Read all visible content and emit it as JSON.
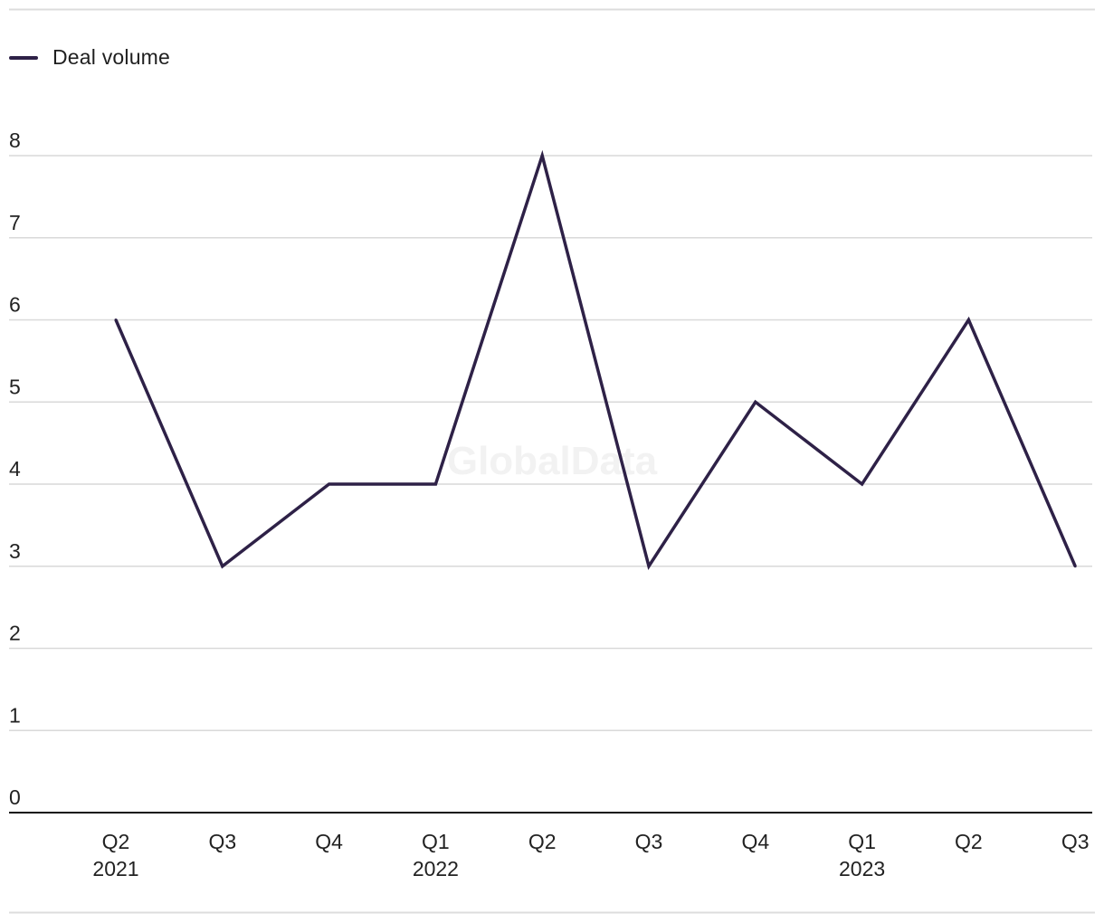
{
  "colors": {
    "series": "#2e2147",
    "grid": "#d9d9d9",
    "axis": "#111111",
    "frame": "#dcdcdc",
    "text": "#222222",
    "watermark": "#f2f2f2"
  },
  "watermark": "GlobalData",
  "chart_data": {
    "type": "line",
    "title": "",
    "xlabel": "",
    "ylabel": "",
    "ylim": [
      0,
      8
    ],
    "y_ticks": [
      0,
      1,
      2,
      3,
      4,
      5,
      6,
      7,
      8
    ],
    "grid": true,
    "legend_position": "top-left",
    "categories": [
      {
        "label": "Q2",
        "year": "2021"
      },
      {
        "label": "Q3",
        "year": ""
      },
      {
        "label": "Q4",
        "year": ""
      },
      {
        "label": "Q1",
        "year": "2022"
      },
      {
        "label": "Q2",
        "year": ""
      },
      {
        "label": "Q3",
        "year": ""
      },
      {
        "label": "Q4",
        "year": ""
      },
      {
        "label": "Q1",
        "year": "2023"
      },
      {
        "label": "Q2",
        "year": ""
      },
      {
        "label": "Q3",
        "year": ""
      }
    ],
    "series": [
      {
        "name": "Deal volume",
        "values": [
          6,
          3,
          4,
          4,
          8,
          3,
          5,
          4,
          6,
          3
        ]
      }
    ]
  }
}
